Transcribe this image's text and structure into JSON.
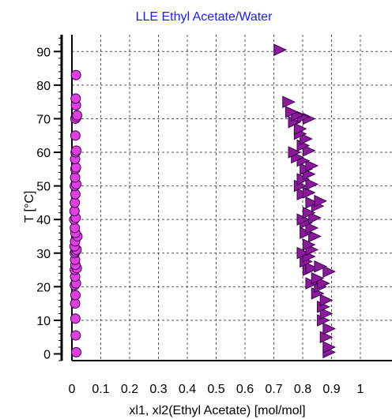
{
  "chart_data": {
    "type": "scatter",
    "title": "LLE Ethyl Acetate/Water",
    "xlabel": "xl1, xl2(Ethyl Acetate) [mol/mol]",
    "ylabel": "T [°C]",
    "xlim": [
      0,
      1
    ],
    "ylim": [
      -2,
      95
    ],
    "xticks": [
      0,
      0.1,
      0.2,
      0.3,
      0.4,
      0.5,
      0.6,
      0.7,
      0.8,
      0.9,
      1
    ],
    "xtick_labels": [
      "0",
      "0.1",
      "0.2",
      "0.3",
      "0.4",
      "0.5",
      "0.6",
      "0.7",
      "0.8",
      "0.9",
      "1"
    ],
    "yticks": [
      0,
      10,
      20,
      30,
      40,
      50,
      60,
      70,
      80,
      90
    ],
    "ytick_labels": [
      "0",
      "10",
      "20",
      "30",
      "40",
      "50",
      "60",
      "70",
      "80",
      "90"
    ],
    "grid": true,
    "legend": "none",
    "colors": {
      "title": "#1a1aff",
      "circle_fill": "#e040e0",
      "triangle_fill": "#8b1a9b",
      "marker_stroke": "#3a0050",
      "grid": "#555555"
    },
    "series": [
      {
        "marker": "circle",
        "points": [
          [
            0.015,
            0.5
          ],
          [
            0.013,
            5.5
          ],
          [
            0.012,
            10.5
          ],
          [
            0.011,
            15.0
          ],
          [
            0.012,
            17.5
          ],
          [
            0.01,
            20.5
          ],
          [
            0.014,
            21.0
          ],
          [
            0.011,
            23.0
          ],
          [
            0.01,
            25.0
          ],
          [
            0.017,
            25.5
          ],
          [
            0.012,
            26.5
          ],
          [
            0.011,
            28.0
          ],
          [
            0.01,
            30.0
          ],
          [
            0.013,
            30.5
          ],
          [
            0.016,
            31.0
          ],
          [
            0.009,
            32.0
          ],
          [
            0.011,
            33.5
          ],
          [
            0.019,
            35.0
          ],
          [
            0.012,
            36.0
          ],
          [
            0.01,
            37.5
          ],
          [
            0.008,
            40.0
          ],
          [
            0.013,
            40.5
          ],
          [
            0.009,
            42.5
          ],
          [
            0.01,
            45.0
          ],
          [
            0.012,
            47.5
          ],
          [
            0.01,
            50.0
          ],
          [
            0.015,
            50.5
          ],
          [
            0.011,
            52.5
          ],
          [
            0.012,
            55.0
          ],
          [
            0.014,
            55.5
          ],
          [
            0.011,
            58.0
          ],
          [
            0.013,
            60.0
          ],
          [
            0.015,
            60.5
          ],
          [
            0.012,
            65.0
          ],
          [
            0.012,
            70.0
          ],
          [
            0.016,
            70.5
          ],
          [
            0.018,
            71.0
          ],
          [
            0.014,
            74.0
          ],
          [
            0.013,
            76.0
          ],
          [
            0.014,
            83.0
          ]
        ]
      },
      {
        "marker": "triangle-right",
        "points": [
          [
            0.89,
            0.5
          ],
          [
            0.89,
            2.0
          ],
          [
            0.88,
            5.0
          ],
          [
            0.89,
            7.5
          ],
          [
            0.87,
            10.0
          ],
          [
            0.88,
            12.0
          ],
          [
            0.87,
            14.0
          ],
          [
            0.88,
            16.0
          ],
          [
            0.85,
            18.0
          ],
          [
            0.86,
            20.0
          ],
          [
            0.87,
            21.0
          ],
          [
            0.83,
            21.0
          ],
          [
            0.85,
            22.5
          ],
          [
            0.89,
            24.5
          ],
          [
            0.82,
            25.0
          ],
          [
            0.83,
            25.5
          ],
          [
            0.86,
            26.0
          ],
          [
            0.81,
            27.5
          ],
          [
            0.82,
            29.0
          ],
          [
            0.8,
            30.0
          ],
          [
            0.83,
            31.0
          ],
          [
            0.82,
            32.5
          ],
          [
            0.84,
            35.0
          ],
          [
            0.81,
            36.0
          ],
          [
            0.83,
            37.5
          ],
          [
            0.81,
            39.0
          ],
          [
            0.8,
            40.0
          ],
          [
            0.84,
            40.5
          ],
          [
            0.82,
            42.0
          ],
          [
            0.85,
            44.0
          ],
          [
            0.83,
            45.0
          ],
          [
            0.86,
            45.5
          ],
          [
            0.8,
            47.5
          ],
          [
            0.82,
            48.0
          ],
          [
            0.79,
            50.0
          ],
          [
            0.83,
            50.5
          ],
          [
            0.8,
            52.0
          ],
          [
            0.82,
            53.5
          ],
          [
            0.81,
            55.0
          ],
          [
            0.83,
            56.0
          ],
          [
            0.8,
            57.5
          ],
          [
            0.78,
            58.5
          ],
          [
            0.77,
            60.0
          ],
          [
            0.82,
            60.5
          ],
          [
            0.8,
            62.0
          ],
          [
            0.81,
            64.0
          ],
          [
            0.79,
            65.5
          ],
          [
            0.79,
            67.0
          ],
          [
            0.77,
            69.0
          ],
          [
            0.82,
            70.0
          ],
          [
            0.8,
            70.5
          ],
          [
            0.78,
            71.0
          ],
          [
            0.76,
            72.0
          ],
          [
            0.75,
            75.0
          ],
          [
            0.72,
            90.5
          ]
        ]
      }
    ]
  }
}
